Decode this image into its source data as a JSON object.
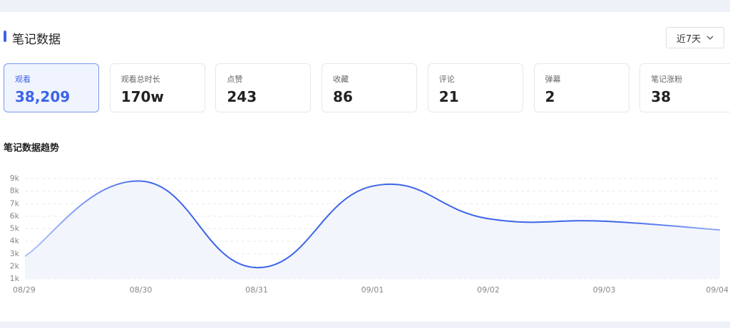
{
  "header": {
    "title": "笔记数据",
    "dropdown": "近7天"
  },
  "cards": [
    {
      "label": "观看",
      "value": "38,209"
    },
    {
      "label": "观看总时长",
      "value": "170w"
    },
    {
      "label": "点赞",
      "value": "243"
    },
    {
      "label": "收藏",
      "value": "86"
    },
    {
      "label": "评论",
      "value": "21"
    },
    {
      "label": "弹幕",
      "value": "2"
    },
    {
      "label": "笔记涨粉",
      "value": "38"
    }
  ],
  "chart_data": {
    "type": "line",
    "title": "笔记数据趋势",
    "categories": [
      "08/29",
      "08/30",
      "08/31",
      "09/01",
      "09/02",
      "09/03",
      "09/04"
    ],
    "values": [
      2800,
      8800,
      1900,
      8400,
      5800,
      5600,
      4900
    ],
    "color": "#3d64e8",
    "ylim": [
      1000,
      9000
    ],
    "yticks": [
      {
        "value": 1000,
        "label": "1k"
      },
      {
        "value": 2000,
        "label": "2k"
      },
      {
        "value": 3000,
        "label": "3k"
      },
      {
        "value": 4000,
        "label": "4k"
      },
      {
        "value": 5000,
        "label": "5k"
      },
      {
        "value": 6000,
        "label": "6k"
      },
      {
        "value": 7000,
        "label": "7k"
      },
      {
        "value": 8000,
        "label": "8k"
      },
      {
        "value": 9000,
        "label": "9k"
      }
    ],
    "grid": true
  }
}
